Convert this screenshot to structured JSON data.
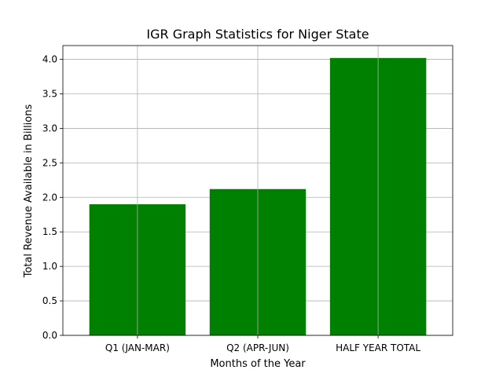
{
  "chart_data": {
    "type": "bar",
    "title": "IGR Graph Statistics for Niger State",
    "xlabel": "Months of the Year",
    "ylabel": "Total Revenue Available in Billions",
    "categories": [
      "Q1 (JAN-MAR)",
      "Q2 (APR-JUN)",
      "HALF YEAR TOTAL"
    ],
    "values": [
      1.9,
      2.12,
      4.02
    ],
    "ylim": [
      0,
      4.2
    ],
    "yticks": [
      "0.0",
      "0.5",
      "1.0",
      "1.5",
      "2.0",
      "2.5",
      "3.0",
      "3.5",
      "4.0"
    ],
    "grid": true,
    "legend": "none",
    "bar_color": "#008000",
    "grid_color": "#b0b0b0"
  }
}
